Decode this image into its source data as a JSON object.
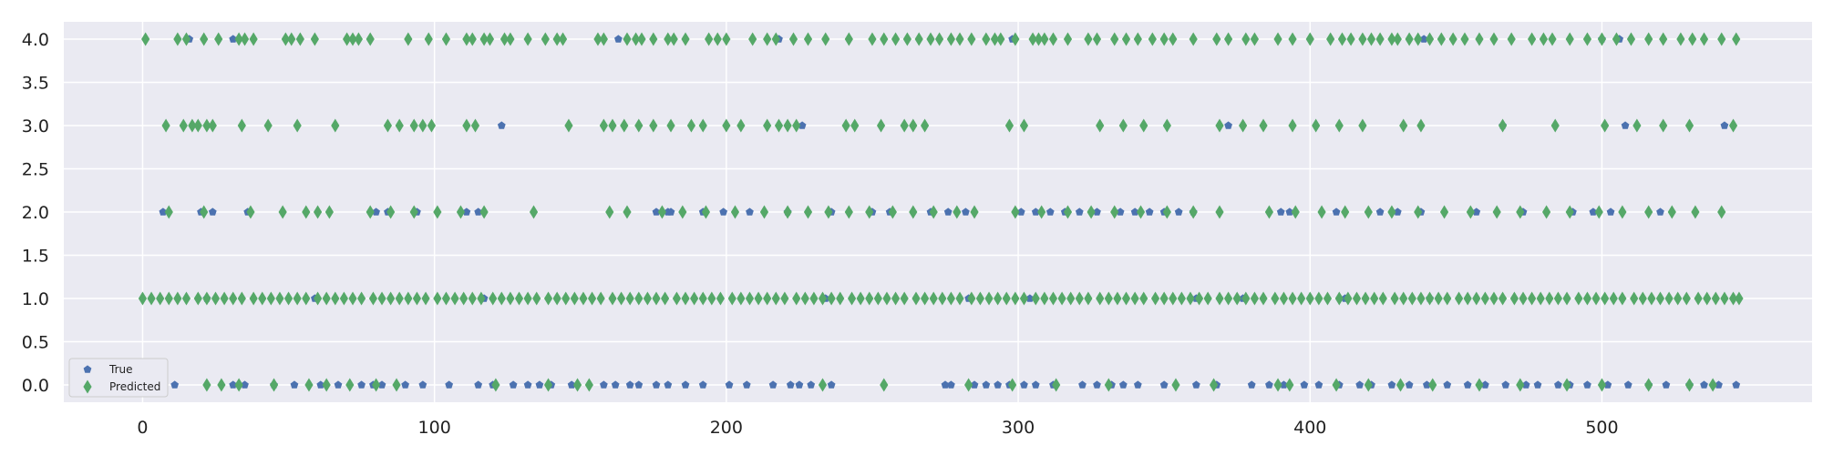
{
  "chart_data": {
    "type": "scatter",
    "title": "",
    "xlabel": "",
    "ylabel": "",
    "xlim": [
      -27,
      572
    ],
    "ylim": [
      -0.2,
      4.2
    ],
    "xticks": [
      0,
      100,
      200,
      300,
      400,
      500
    ],
    "yticks": [
      0.0,
      0.5,
      1.0,
      1.5,
      2.0,
      2.5,
      3.0,
      3.5,
      4.0
    ],
    "xtick_labels": [
      "0",
      "100",
      "200",
      "300",
      "400",
      "500"
    ],
    "ytick_labels": [
      "0.0",
      "0.5",
      "1.0",
      "1.5",
      "2.0",
      "2.5",
      "3.0",
      "3.5",
      "4.0"
    ],
    "grid": true,
    "legend_position": "lower-left",
    "background_color": "#eaeaf2",
    "series": [
      {
        "name": "True",
        "marker": "pentagon",
        "color": "#4c72b0",
        "levels": [
          {
            "y": 4.0,
            "x": [
              16,
              31,
              163,
              218,
              298,
              439,
              500,
              506
            ]
          },
          {
            "y": 3.0,
            "x": [
              123,
              226,
              372,
              466,
              508,
              542
            ]
          },
          {
            "y": 2.0,
            "x": [
              7,
              20,
              24,
              36,
              80,
              84,
              94,
              111,
              115,
              176,
              180,
              181,
              192,
              199,
              208,
              221,
              236,
              250,
              256,
              270,
              276,
              282,
              301,
              306,
              311,
              316,
              321,
              327,
              335,
              340,
              345,
              350,
              355,
              360,
              390,
              393,
              409,
              424,
              430,
              438,
              457,
              473,
              490,
              497,
              503,
              520
            ]
          },
          {
            "y": 1.0,
            "x": [
              22,
              59,
              117,
              234,
              283,
              304,
              361,
              377,
              412,
              441
            ]
          },
          {
            "y": 0.0,
            "x": [
              11,
              31,
              35,
              45,
              52,
              61,
              67,
              75,
              79,
              82,
              90,
              96,
              105,
              115,
              120,
              127,
              132,
              136,
              140,
              147,
              158,
              162,
              167,
              170,
              176,
              180,
              186,
              192,
              201,
              207,
              216,
              222,
              225,
              229,
              236,
              275,
              277,
              285,
              289,
              293,
              297,
              302,
              306,
              312,
              322,
              327,
              332,
              336,
              341,
              350,
              361,
              368,
              380,
              386,
              391,
              398,
              403,
              410,
              417,
              421,
              428,
              434,
              440,
              447,
              454,
              460,
              467,
              474,
              478,
              485,
              489,
              495,
              502,
              509,
              516,
              522,
              530,
              535,
              540,
              546
            ]
          }
        ]
      },
      {
        "name": "Predicted",
        "marker": "thin_diamond",
        "color": "#55a868",
        "levels": [
          {
            "y": 4.0,
            "x": [
              1,
              12,
              15,
              21,
              26,
              33,
              35,
              38,
              49,
              51,
              54,
              59,
              70,
              72,
              74,
              78,
              91,
              98,
              104,
              111,
              113,
              117,
              119,
              124,
              126,
              132,
              138,
              142,
              144,
              156,
              158,
              166,
              169,
              171,
              175,
              180,
              182,
              186,
              194,
              197,
              200,
              209,
              214,
              217,
              223,
              228,
              234,
              242,
              250,
              254,
              258,
              262,
              266,
              270,
              273,
              277,
              280,
              284,
              289,
              292,
              294,
              299,
              305,
              307,
              309,
              312,
              317,
              324,
              327,
              333,
              337,
              341,
              346,
              350,
              353,
              360,
              368,
              372,
              378,
              381,
              389,
              394,
              400,
              407,
              411,
              414,
              418,
              421,
              424,
              428,
              430,
              434,
              437,
              441,
              445,
              449,
              453,
              458,
              463,
              469,
              476,
              480,
              483,
              489,
              495,
              500,
              505,
              510,
              516,
              521,
              527,
              531,
              535,
              541,
              546
            ]
          },
          {
            "y": 3.0,
            "x": [
              8,
              14,
              17,
              19,
              22,
              24,
              34,
              43,
              53,
              66,
              84,
              88,
              93,
              96,
              99,
              111,
              114,
              146,
              158,
              161,
              165,
              170,
              175,
              181,
              188,
              192,
              200,
              205,
              214,
              218,
              221,
              224,
              241,
              244,
              253,
              261,
              264,
              268,
              297,
              302,
              328,
              336,
              343,
              351,
              369,
              377,
              384,
              394,
              402,
              410,
              418,
              432,
              438,
              466,
              484,
              501,
              512,
              521,
              530,
              545
            ]
          },
          {
            "y": 2.0,
            "x": [
              9,
              21,
              37,
              48,
              56,
              60,
              64,
              78,
              85,
              93,
              101,
              109,
              117,
              134,
              160,
              166,
              178,
              185,
              193,
              203,
              213,
              221,
              228,
              235,
              242,
              249,
              257,
              264,
              271,
              279,
              285,
              299,
              308,
              317,
              325,
              333,
              342,
              351,
              360,
              369,
              386,
              395,
              404,
              412,
              420,
              428,
              437,
              446,
              455,
              464,
              472,
              481,
              489,
              499,
              507,
              516,
              524,
              532,
              541
            ]
          },
          {
            "y": 1.0,
            "x": [
              0,
              3,
              6,
              9,
              12,
              15,
              19,
              22,
              25,
              28,
              31,
              34,
              38,
              41,
              44,
              47,
              50,
              53,
              56,
              60,
              63,
              66,
              69,
              72,
              75,
              79,
              82,
              85,
              88,
              91,
              94,
              97,
              101,
              104,
              107,
              110,
              113,
              116,
              120,
              123,
              126,
              129,
              132,
              135,
              139,
              142,
              145,
              148,
              151,
              154,
              157,
              161,
              164,
              167,
              170,
              173,
              176,
              179,
              183,
              186,
              189,
              192,
              195,
              198,
              202,
              205,
              208,
              211,
              214,
              217,
              220,
              224,
              227,
              230,
              233,
              236,
              239,
              243,
              246,
              249,
              252,
              255,
              258,
              261,
              265,
              268,
              271,
              274,
              277,
              280,
              284,
              287,
              290,
              293,
              296,
              299,
              302,
              306,
              309,
              312,
              315,
              318,
              321,
              324,
              328,
              331,
              334,
              337,
              340,
              343,
              347,
              350,
              353,
              356,
              359,
              362,
              365,
              369,
              372,
              375,
              378,
              381,
              384,
              388,
              391,
              394,
              397,
              400,
              403,
              406,
              410,
              413,
              416,
              419,
              422,
              425,
              429,
              432,
              435,
              438,
              441,
              444,
              447,
              451,
              454,
              457,
              460,
              463,
              466,
              470,
              473,
              476,
              479,
              482,
              485,
              488,
              492,
              495,
              498,
              501,
              504,
              507,
              511,
              514,
              517,
              520,
              523,
              526,
              529,
              533,
              536,
              539,
              542,
              545,
              547
            ]
          },
          {
            "y": 0.0,
            "x": [
              22,
              27,
              33,
              45,
              57,
              63,
              71,
              80,
              87,
              121,
              139,
              149,
              153,
              233,
              254,
              283,
              298,
              313,
              331,
              354,
              367,
              389,
              393,
              409,
              420,
              431,
              442,
              458,
              472,
              488,
              500,
              516,
              530,
              538
            ]
          }
        ]
      }
    ]
  }
}
